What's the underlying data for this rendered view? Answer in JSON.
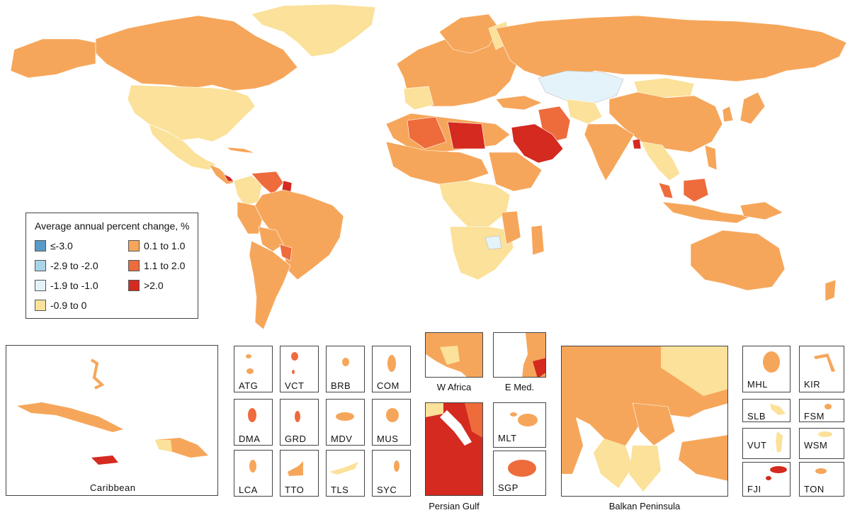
{
  "legend": {
    "title": "Average annual percent change, %",
    "items": [
      {
        "label": "≤-3.0",
        "color": "#5a9ac8"
      },
      {
        "label": "-2.9 to -2.0",
        "color": "#a9d4ea"
      },
      {
        "label": "-1.9 to -1.0",
        "color": "#e4f3fa"
      },
      {
        "label": "-0.9 to 0",
        "color": "#fbe199"
      },
      {
        "label": "0.1 to 1.0",
        "color": "#f6a65a"
      },
      {
        "label": "1.1 to 2.0",
        "color": "#ee6b3c"
      },
      {
        "label": ">2.0",
        "color": "#d42a20"
      }
    ]
  },
  "insets": {
    "caribbean": "Caribbean",
    "atg": "ATG",
    "vct": "VCT",
    "brb": "BRB",
    "com": "COM",
    "dma": "DMA",
    "grd": "GRD",
    "mdv": "MDV",
    "mus": "MUS",
    "lca": "LCA",
    "tto": "TTO",
    "tls": "TLS",
    "syc": "SYC",
    "w_africa": "W Africa",
    "e_med": "E Med.",
    "persian_gulf": "Persian Gulf",
    "mlt": "MLT",
    "sgp": "SGP",
    "balkan": "Balkan Peninsula",
    "mhl": "MHL",
    "kir": "KIR",
    "slb": "SLB",
    "fsm": "FSM",
    "vut": "VUT",
    "wsm": "WSM",
    "fji": "FJI",
    "ton": "TON"
  }
}
